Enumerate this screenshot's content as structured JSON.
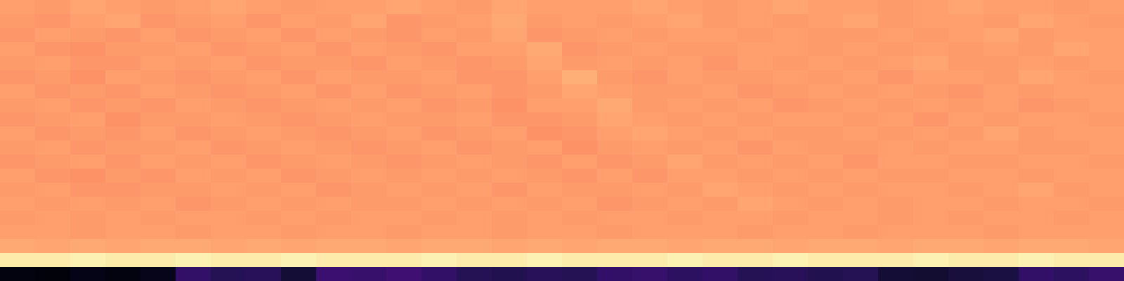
{
  "chart_data": {
    "type": "heatmap",
    "tick_labels": false,
    "color_range": [
      0,
      1
    ],
    "z": [
      [
        0.8,
        0.79,
        0.81,
        0.8,
        0.79,
        0.8,
        0.81,
        0.8,
        0.79,
        0.8,
        0.8,
        0.81,
        0.8,
        0.79,
        0.81,
        0.8,
        0.8,
        0.8,
        0.81,
        0.8,
        0.79,
        0.8,
        0.81,
        0.8,
        0.8,
        0.79,
        0.8,
        0.81,
        0.8,
        0.8,
        0.79,
        0.8
      ],
      [
        0.79,
        0.78,
        0.8,
        0.81,
        0.78,
        0.79,
        0.8,
        0.78,
        0.8,
        0.79,
        0.81,
        0.78,
        0.79,
        0.8,
        0.82,
        0.79,
        0.8,
        0.79,
        0.8,
        0.81,
        0.79,
        0.8,
        0.79,
        0.8,
        0.81,
        0.79,
        0.8,
        0.8,
        0.79,
        0.81,
        0.8,
        0.79
      ],
      [
        0.78,
        0.8,
        0.79,
        0.78,
        0.8,
        0.78,
        0.79,
        0.8,
        0.78,
        0.8,
        0.79,
        0.78,
        0.8,
        0.79,
        0.81,
        0.78,
        0.79,
        0.8,
        0.79,
        0.8,
        0.8,
        0.79,
        0.8,
        0.79,
        0.79,
        0.8,
        0.79,
        0.8,
        0.81,
        0.79,
        0.8,
        0.8
      ],
      [
        0.8,
        0.78,
        0.77,
        0.79,
        0.79,
        0.8,
        0.78,
        0.79,
        0.8,
        0.78,
        0.8,
        0.79,
        0.78,
        0.8,
        0.8,
        0.82,
        0.78,
        0.79,
        0.8,
        0.79,
        0.79,
        0.8,
        0.8,
        0.79,
        0.8,
        0.79,
        0.8,
        0.79,
        0.8,
        0.79,
        0.81,
        0.8
      ],
      [
        0.79,
        0.8,
        0.78,
        0.78,
        0.8,
        0.79,
        0.8,
        0.78,
        0.79,
        0.79,
        0.78,
        0.8,
        0.79,
        0.78,
        0.79,
        0.81,
        0.79,
        0.8,
        0.79,
        0.8,
        0.78,
        0.8,
        0.79,
        0.8,
        0.79,
        0.8,
        0.81,
        0.79,
        0.79,
        0.8,
        0.79,
        0.8
      ],
      [
        0.78,
        0.79,
        0.77,
        0.8,
        0.79,
        0.78,
        0.79,
        0.8,
        0.78,
        0.8,
        0.79,
        0.79,
        0.8,
        0.78,
        0.78,
        0.8,
        0.83,
        0.79,
        0.78,
        0.8,
        0.79,
        0.79,
        0.8,
        0.79,
        0.8,
        0.78,
        0.8,
        0.8,
        0.79,
        0.81,
        0.8,
        0.79
      ],
      [
        0.8,
        0.78,
        0.79,
        0.78,
        0.8,
        0.79,
        0.78,
        0.79,
        0.8,
        0.78,
        0.8,
        0.78,
        0.79,
        0.8,
        0.78,
        0.79,
        0.81,
        0.8,
        0.79,
        0.79,
        0.8,
        0.78,
        0.79,
        0.8,
        0.79,
        0.8,
        0.79,
        0.78,
        0.8,
        0.79,
        0.8,
        0.8
      ],
      [
        0.79,
        0.8,
        0.78,
        0.79,
        0.78,
        0.8,
        0.79,
        0.78,
        0.79,
        0.8,
        0.79,
        0.8,
        0.78,
        0.79,
        0.77,
        0.8,
        0.8,
        0.82,
        0.79,
        0.8,
        0.79,
        0.8,
        0.78,
        0.79,
        0.8,
        0.79,
        0.8,
        0.79,
        0.8,
        0.78,
        0.79,
        0.8
      ],
      [
        0.78,
        0.79,
        0.8,
        0.77,
        0.79,
        0.79,
        0.8,
        0.79,
        0.78,
        0.79,
        0.8,
        0.79,
        0.79,
        0.8,
        0.78,
        0.78,
        0.79,
        0.81,
        0.8,
        0.79,
        0.8,
        0.79,
        0.8,
        0.8,
        0.79,
        0.8,
        0.78,
        0.8,
        0.79,
        0.8,
        0.8,
        0.79
      ],
      [
        0.8,
        0.78,
        0.79,
        0.78,
        0.8,
        0.78,
        0.79,
        0.8,
        0.79,
        0.78,
        0.79,
        0.8,
        0.78,
        0.79,
        0.8,
        0.77,
        0.78,
        0.8,
        0.81,
        0.8,
        0.79,
        0.8,
        0.79,
        0.79,
        0.8,
        0.79,
        0.8,
        0.79,
        0.81,
        0.79,
        0.8,
        0.8
      ],
      [
        0.79,
        0.8,
        0.78,
        0.79,
        0.79,
        0.8,
        0.78,
        0.79,
        0.8,
        0.79,
        0.78,
        0.79,
        0.8,
        0.78,
        0.79,
        0.8,
        0.77,
        0.79,
        0.8,
        0.79,
        0.8,
        0.78,
        0.8,
        0.79,
        0.79,
        0.8,
        0.79,
        0.8,
        0.8,
        0.79,
        0.79,
        0.8
      ],
      [
        0.78,
        0.79,
        0.8,
        0.78,
        0.8,
        0.79,
        0.8,
        0.78,
        0.79,
        0.8,
        0.79,
        0.78,
        0.79,
        0.8,
        0.79,
        0.78,
        0.8,
        0.78,
        0.79,
        0.81,
        0.79,
        0.8,
        0.79,
        0.8,
        0.78,
        0.8,
        0.8,
        0.79,
        0.79,
        0.8,
        0.8,
        0.79
      ],
      [
        0.8,
        0.78,
        0.77,
        0.79,
        0.78,
        0.8,
        0.79,
        0.8,
        0.78,
        0.79,
        0.8,
        0.79,
        0.8,
        0.79,
        0.8,
        0.79,
        0.78,
        0.8,
        0.78,
        0.8,
        0.8,
        0.79,
        0.8,
        0.79,
        0.8,
        0.79,
        0.79,
        0.8,
        0.8,
        0.79,
        0.8,
        0.8
      ],
      [
        0.79,
        0.8,
        0.78,
        0.78,
        0.79,
        0.79,
        0.8,
        0.79,
        0.8,
        0.78,
        0.79,
        0.8,
        0.79,
        0.8,
        0.78,
        0.8,
        0.79,
        0.79,
        0.8,
        0.79,
        0.81,
        0.8,
        0.79,
        0.8,
        0.79,
        0.8,
        0.8,
        0.79,
        0.8,
        0.81,
        0.79,
        0.8
      ],
      [
        0.8,
        0.79,
        0.8,
        0.79,
        0.8,
        0.78,
        0.79,
        0.8,
        0.79,
        0.8,
        0.79,
        0.79,
        0.8,
        0.79,
        0.8,
        0.79,
        0.8,
        0.78,
        0.79,
        0.8,
        0.79,
        0.81,
        0.8,
        0.79,
        0.8,
        0.79,
        0.8,
        0.8,
        0.79,
        0.8,
        0.8,
        0.79
      ],
      [
        0.79,
        0.8,
        0.79,
        0.8,
        0.79,
        0.8,
        0.8,
        0.79,
        0.8,
        0.79,
        0.8,
        0.8,
        0.79,
        0.8,
        0.79,
        0.8,
        0.79,
        0.8,
        0.8,
        0.79,
        0.8,
        0.8,
        0.79,
        0.8,
        0.8,
        0.79,
        0.8,
        0.79,
        0.8,
        0.8,
        0.79,
        0.8
      ],
      [
        0.8,
        0.8,
        0.79,
        0.8,
        0.8,
        0.79,
        0.8,
        0.8,
        0.79,
        0.8,
        0.8,
        0.79,
        0.8,
        0.8,
        0.79,
        0.8,
        0.8,
        0.79,
        0.8,
        0.8,
        0.8,
        0.79,
        0.8,
        0.8,
        0.79,
        0.8,
        0.8,
        0.8,
        0.79,
        0.8,
        0.8,
        0.8
      ],
      [
        0.82,
        0.81,
        0.82,
        0.81,
        0.82,
        0.82,
        0.81,
        0.82,
        0.81,
        0.82,
        0.82,
        0.81,
        0.82,
        0.82,
        0.81,
        0.82,
        0.81,
        0.82,
        0.82,
        0.81,
        0.82,
        0.82,
        0.81,
        0.82,
        0.82,
        0.81,
        0.82,
        0.82,
        0.81,
        0.82,
        0.82,
        0.81
      ],
      [
        0.96,
        0.96,
        0.97,
        0.96,
        0.96,
        0.97,
        0.96,
        0.96,
        0.97,
        0.96,
        0.96,
        0.96,
        0.97,
        0.96,
        0.96,
        0.97,
        0.96,
        0.96,
        0.96,
        0.97,
        0.96,
        0.96,
        0.97,
        0.96,
        0.96,
        0.96,
        0.97,
        0.96,
        0.96,
        0.97,
        0.96,
        0.96
      ],
      [
        0.03,
        0.02,
        0.04,
        0.03,
        0.05,
        0.18,
        0.15,
        0.16,
        0.1,
        0.2,
        0.19,
        0.21,
        0.18,
        0.15,
        0.14,
        0.16,
        0.15,
        0.18,
        0.19,
        0.17,
        0.18,
        0.15,
        0.16,
        0.14,
        0.15,
        0.1,
        0.09,
        0.11,
        0.12,
        0.18,
        0.17,
        0.19
      ]
    ]
  }
}
